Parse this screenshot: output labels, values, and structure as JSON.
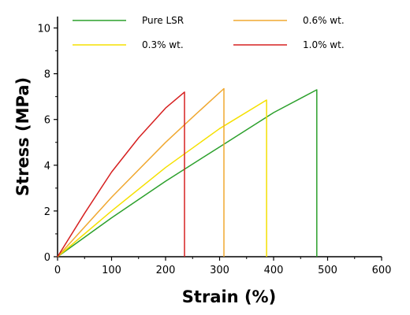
{
  "chart_data": {
    "type": "line",
    "xlabel": "Strain (%)",
    "ylabel": "Stress (MPa)",
    "xlim": [
      0,
      600
    ],
    "ylim": [
      0,
      10.5
    ],
    "xticks": [
      0,
      100,
      200,
      300,
      400,
      500,
      600
    ],
    "yticks": [
      0,
      2,
      4,
      6,
      8,
      10
    ],
    "grid": false,
    "legend_position": "top",
    "series": [
      {
        "name": "Pure LSR",
        "color": "#2ca02c",
        "x": [
          0,
          100,
          200,
          300,
          400,
          480,
          480
        ],
        "y": [
          0,
          1.7,
          3.3,
          4.8,
          6.3,
          7.3,
          0
        ]
      },
      {
        "name": "0.3% wt.",
        "color": "#f5e000",
        "x": [
          0,
          100,
          200,
          300,
          387,
          387
        ],
        "y": [
          0,
          2.0,
          3.9,
          5.6,
          6.85,
          0
        ]
      },
      {
        "name": "0.6% wt.",
        "color": "#f0a830",
        "x": [
          0,
          100,
          200,
          250,
          308,
          308
        ],
        "y": [
          0,
          2.6,
          5.0,
          6.1,
          7.35,
          0
        ]
      },
      {
        "name": "1.0% wt.",
        "color": "#d62020",
        "x": [
          0,
          50,
          100,
          150,
          200,
          235,
          235
        ],
        "y": [
          0,
          1.9,
          3.7,
          5.2,
          6.5,
          7.2,
          0
        ]
      }
    ]
  }
}
